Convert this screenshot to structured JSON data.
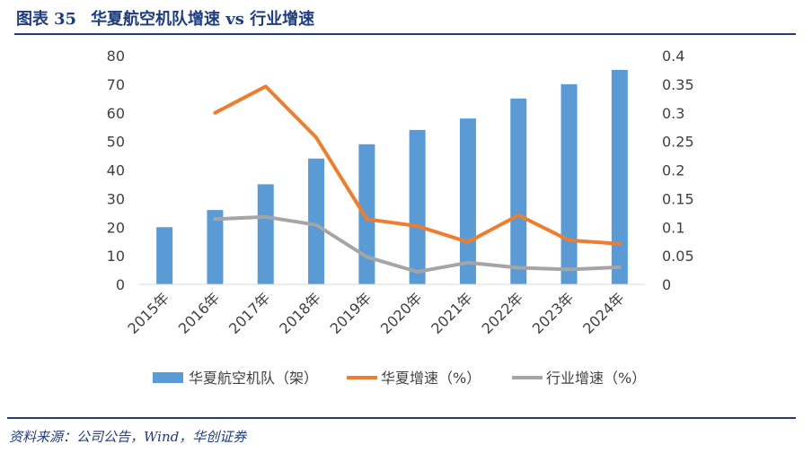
{
  "header": {
    "figure_label": "图表",
    "figure_number": "35",
    "title": "华夏航空机队增速 vs 行业增速"
  },
  "footer": {
    "source": "资料来源：公司公告，Wind，华创证券"
  },
  "colors": {
    "bar": "#5b9bd5",
    "huaxia_growth": "#ed7d31",
    "industry_growth": "#a5a5a5",
    "accent": "#1f3d7a"
  },
  "chart_data": {
    "type": "bar",
    "categories": [
      "2015年",
      "2016年",
      "2017年",
      "2018年",
      "2019年",
      "2020年",
      "2021年",
      "2022年",
      "2023年",
      "2024年"
    ],
    "y_left": {
      "min": 0,
      "max": 80,
      "ticks": [
        "0",
        "10",
        "20",
        "30",
        "40",
        "50",
        "60",
        "70",
        "80"
      ]
    },
    "y_right": {
      "min": 0,
      "max": 0.4,
      "ticks": [
        "0",
        "0.05",
        "0.1",
        "0.15",
        "0.2",
        "0.25",
        "0.3",
        "0.35",
        "0.4"
      ]
    },
    "grid": false,
    "legend_position": "bottom",
    "series": [
      {
        "name": "华夏航空机队（架）",
        "kind": "bar",
        "axis": "left",
        "values": [
          20,
          26,
          35,
          44,
          49,
          54,
          58,
          65,
          70,
          75
        ]
      },
      {
        "name": "华夏增速（%）",
        "kind": "line",
        "axis": "right",
        "values": [
          null,
          0.3,
          0.346,
          0.257,
          0.114,
          0.102,
          0.074,
          0.121,
          0.077,
          0.071
        ]
      },
      {
        "name": "行业增速（%）",
        "kind": "line",
        "axis": "right",
        "values": [
          null,
          0.114,
          0.118,
          0.104,
          0.048,
          0.022,
          0.038,
          0.029,
          0.026,
          0.03
        ]
      }
    ]
  }
}
